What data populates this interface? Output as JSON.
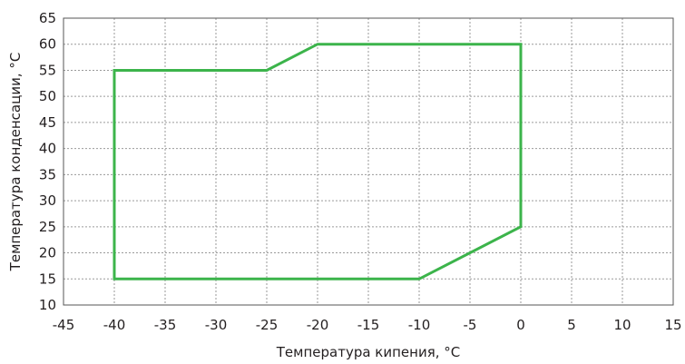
{
  "chart_data": {
    "type": "line",
    "title": "",
    "xlabel": "Температура кипения, °C",
    "ylabel": "Температура конденсации, °C",
    "xlim": [
      -45,
      15
    ],
    "ylim": [
      10,
      65
    ],
    "x_ticks": [
      -45,
      -40,
      -35,
      -30,
      -25,
      -20,
      -15,
      -10,
      -5,
      0,
      5,
      10,
      15
    ],
    "y_ticks": [
      10,
      15,
      20,
      25,
      30,
      35,
      40,
      45,
      50,
      55,
      60,
      65
    ],
    "grid": true,
    "legend": "none",
    "series": [
      {
        "color": "#3cb44b",
        "closed": true,
        "x": [
          -40,
          -40,
          -25,
          -20,
          0,
          0,
          -10,
          -40
        ],
        "y": [
          15,
          55,
          55,
          60,
          60,
          25,
          15,
          15
        ]
      }
    ]
  }
}
